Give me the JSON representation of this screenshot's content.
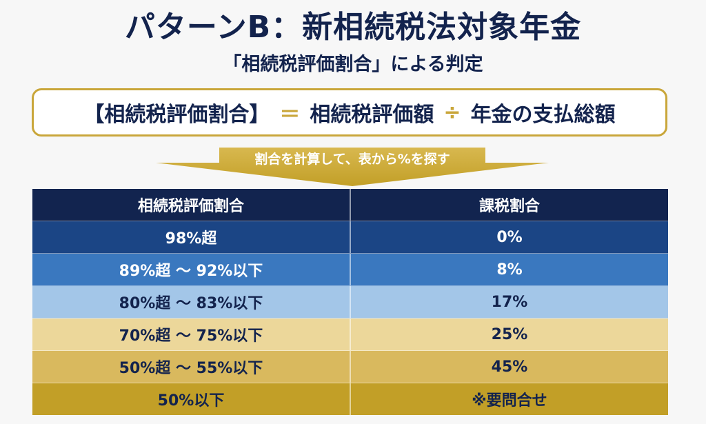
{
  "title": "パターンB：新相続税法対象年金",
  "subtitle": "「相続税評価割合」による判定",
  "formula": {
    "term1": "【相続税評価割合】",
    "equals": "＝",
    "term2": "相続税評価額",
    "divide": "÷",
    "term3": "年金の支払総額"
  },
  "arrow_label": "割合を計算して、表から%を探す",
  "table": {
    "headers": [
      "相続税評価割合",
      "課税割合"
    ],
    "rows": [
      [
        "98%超",
        "0%"
      ],
      [
        "89%超 ～ 92%以下",
        "8%"
      ],
      [
        "80%超 ～ 83%以下",
        "17%"
      ],
      [
        "70%超 ～ 75%以下",
        "25%"
      ],
      [
        "50%超 ～ 55%以下",
        "45%"
      ],
      [
        "50%以下",
        "※要問合せ"
      ]
    ]
  },
  "colors": {
    "navy": "#12244f",
    "gold": "#c9a63a"
  }
}
